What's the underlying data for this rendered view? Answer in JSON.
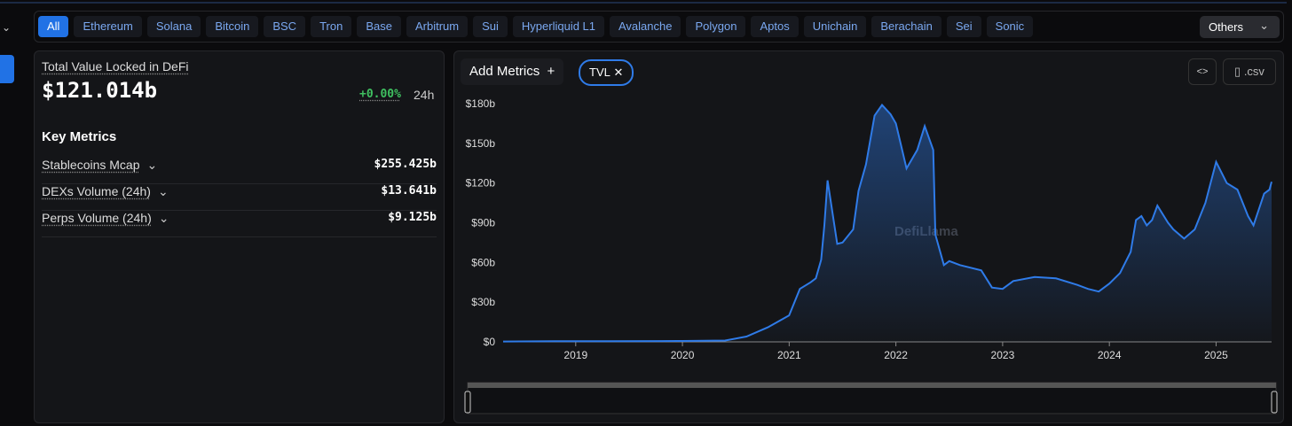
{
  "filters": {
    "chains": [
      "All",
      "Ethereum",
      "Solana",
      "Bitcoin",
      "BSC",
      "Tron",
      "Base",
      "Arbitrum",
      "Sui",
      "Hyperliquid L1",
      "Avalanche",
      "Polygon",
      "Aptos",
      "Unichain",
      "Berachain",
      "Sei",
      "Sonic"
    ],
    "others": "Others"
  },
  "summary": {
    "title": "Total Value Locked in DeFi",
    "value": "$121.014b",
    "change": "+0.00%",
    "period": "24h"
  },
  "key_metrics": {
    "title": "Key Metrics",
    "items": [
      {
        "label": "Stablecoins Mcap",
        "value": "$255.425b"
      },
      {
        "label": "DEXs Volume (24h)",
        "value": "$13.641b"
      },
      {
        "label": "Perps Volume (24h)",
        "value": "$9.125b"
      }
    ]
  },
  "toolbar": {
    "add_metrics": "Add Metrics",
    "csv": ".csv"
  },
  "chart_data": {
    "type": "area",
    "watermark": "DefiLlama",
    "x": [
      2018.32,
      2018.8,
      2019.3,
      2019.8,
      2020.0,
      2020.4,
      2020.6,
      2020.8,
      2021.0,
      2021.1,
      2021.2,
      2021.25,
      2021.3,
      2021.33,
      2021.36,
      2021.45,
      2021.5,
      2021.6,
      2021.65,
      2021.72,
      2021.8,
      2021.87,
      2021.95,
      2022.0,
      2022.1,
      2022.2,
      2022.27,
      2022.35,
      2022.37,
      2022.45,
      2022.5,
      2022.6,
      2022.8,
      2022.9,
      2023.0,
      2023.1,
      2023.3,
      2023.5,
      2023.7,
      2023.8,
      2023.9,
      2024.0,
      2024.1,
      2024.15,
      2024.2,
      2024.25,
      2024.3,
      2024.35,
      2024.4,
      2024.45,
      2024.55,
      2024.6,
      2024.7,
      2024.8,
      2024.9,
      2025.0,
      2025.1,
      2025.2,
      2025.3,
      2025.35,
      2025.45,
      2025.5,
      2025.52
    ],
    "series": [
      {
        "name": "TVL",
        "color": "#2f7be8",
        "values": [
          0.3,
          0.5,
          0.5,
          0.6,
          0.7,
          1,
          4,
          11,
          20,
          40,
          45,
          48,
          62,
          88,
          122,
          74,
          75,
          85,
          114,
          134,
          171,
          179,
          172,
          165,
          131,
          145,
          163,
          145,
          81,
          58,
          61,
          58,
          54,
          41,
          40,
          46,
          49,
          48,
          43,
          40,
          38,
          44,
          52,
          60,
          68,
          92,
          95,
          88,
          92,
          103,
          90,
          85,
          78,
          85,
          105,
          136,
          120,
          115,
          95,
          88,
          112,
          115,
          121
        ]
      }
    ],
    "xlim": [
      2018.32,
      2025.52
    ],
    "xticks": [
      2019,
      2020,
      2021,
      2022,
      2023,
      2024,
      2025
    ],
    "ylim": [
      0,
      180
    ],
    "yticks": [
      {
        "value": 0,
        "label": "$0"
      },
      {
        "value": 30,
        "label": "$30b"
      },
      {
        "value": 60,
        "label": "$60b"
      },
      {
        "value": 90,
        "label": "$90b"
      },
      {
        "value": 120,
        "label": "$120b"
      },
      {
        "value": 150,
        "label": "$150b"
      },
      {
        "value": 180,
        "label": "$180b"
      }
    ]
  }
}
